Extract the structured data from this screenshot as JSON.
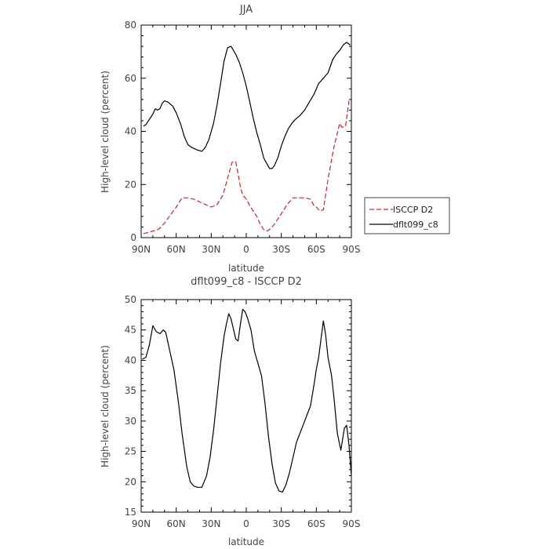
{
  "chart_data": [
    {
      "type": "line",
      "title": "JJA",
      "xlabel": "latitude",
      "ylabel": "High-level cloud (percent)",
      "xlim": [
        -90,
        90
      ],
      "ylim": [
        0,
        80
      ],
      "xticks": [
        -90,
        -60,
        -30,
        0,
        30,
        60,
        90
      ],
      "xtick_labels": [
        "90N",
        "60N",
        "30N",
        "0",
        "30S",
        "60S",
        "90S"
      ],
      "yticks": [
        0,
        20,
        40,
        60,
        80
      ],
      "ytick_labels": [
        "0",
        "20",
        "40",
        "60",
        "80"
      ],
      "legend_position": "right",
      "series": [
        {
          "name": "ISCCP D2",
          "color": "#e02020",
          "dash": "dashed",
          "x": [
            -88,
            -82,
            -75,
            -70,
            -65,
            -60,
            -55,
            -50,
            -45,
            -40,
            -35,
            -30,
            -25,
            -20,
            -15,
            -12,
            -9,
            -7,
            -5,
            -3,
            0,
            3,
            6,
            9,
            12,
            15,
            18,
            21,
            24,
            27,
            30,
            35,
            40,
            45,
            50,
            55,
            58,
            60,
            63,
            66,
            70,
            75,
            80,
            82,
            85,
            88
          ],
          "y": [
            1.5,
            2.2,
            3.2,
            5.5,
            8.5,
            11.5,
            15,
            15,
            14.5,
            13.5,
            12.5,
            11.5,
            12.5,
            16,
            24,
            28.5,
            28.5,
            24,
            19,
            16,
            14.5,
            12,
            10,
            8,
            5,
            3,
            2.5,
            3.5,
            5,
            7,
            9,
            12.5,
            15,
            15,
            15,
            14.5,
            12,
            11.5,
            10,
            10.5,
            22,
            34,
            43,
            41.5,
            42,
            51.5
          ]
        },
        {
          "name": "dflt099_c8",
          "color": "#000000",
          "dash": "solid",
          "x": [
            -88,
            -86,
            -83,
            -80,
            -78,
            -76,
            -74,
            -72,
            -70,
            -67,
            -63,
            -60,
            -56,
            -53,
            -50,
            -47,
            -42,
            -38,
            -35,
            -32,
            -28,
            -25,
            -22,
            -19,
            -16,
            -13,
            -11,
            -9,
            -6,
            -3,
            0,
            3,
            6,
            9,
            12,
            15,
            18,
            20,
            22,
            24,
            27,
            30,
            33,
            36,
            39,
            42,
            46,
            50,
            54,
            58,
            62,
            66,
            70,
            74,
            77,
            80,
            83,
            86,
            89
          ],
          "y": [
            42,
            42.5,
            44.5,
            46.5,
            48.5,
            48,
            48.5,
            50.5,
            51.5,
            51,
            49.5,
            47,
            42.5,
            38,
            35,
            34,
            33,
            32.5,
            34,
            37,
            43,
            50,
            58,
            66.5,
            71.5,
            72,
            70.5,
            69,
            66,
            62,
            57,
            51,
            45,
            39.5,
            35,
            30,
            27.5,
            26,
            26,
            27,
            30,
            34.5,
            38,
            41,
            43,
            44.5,
            46,
            48,
            51,
            54,
            58,
            60,
            62,
            67,
            69,
            70.5,
            72.5,
            73.5,
            72.5
          ]
        }
      ]
    },
    {
      "type": "line",
      "title": "dflt099_c8 - ISCCP D2",
      "xlabel": "latitude",
      "ylabel": "High-level cloud (percent)",
      "xlim": [
        -90,
        90
      ],
      "ylim": [
        15,
        50
      ],
      "xticks": [
        -90,
        -60,
        -30,
        0,
        30,
        60,
        90
      ],
      "xtick_labels": [
        "90N",
        "60N",
        "30N",
        "0",
        "30S",
        "60S",
        "90S"
      ],
      "yticks": [
        15,
        20,
        25,
        30,
        35,
        40,
        45,
        50
      ],
      "ytick_labels": [
        "15",
        "20",
        "25",
        "30",
        "35",
        "40",
        "45",
        "50"
      ],
      "series": [
        {
          "color": "#000000",
          "dash": "solid",
          "x": [
            -89,
            -86,
            -83,
            -80,
            -77,
            -74,
            -71,
            -69,
            -66,
            -62,
            -58,
            -55,
            -51,
            -48,
            -45,
            -42,
            -38,
            -34,
            -31,
            -28,
            -25,
            -22,
            -19,
            -17,
            -15,
            -13,
            -11,
            -9,
            -7,
            -5,
            -3,
            -1,
            1,
            4,
            7,
            10,
            13,
            16,
            19,
            22,
            25,
            28,
            31,
            34,
            37,
            40,
            43,
            46,
            49,
            52,
            55,
            58,
            60,
            62,
            64,
            66,
            68,
            70,
            73,
            75,
            78,
            81,
            84,
            86,
            88,
            90
          ],
          "y": [
            40.2,
            40.5,
            42.5,
            45.7,
            44.7,
            44.4,
            45,
            44.6,
            42,
            38.5,
            33,
            28,
            22.5,
            20,
            19.3,
            19.1,
            19.1,
            21,
            24,
            28.5,
            34,
            39.5,
            44,
            46,
            47.7,
            46.8,
            45.2,
            43.5,
            43.2,
            46,
            48.4,
            48,
            47,
            45,
            41.5,
            39.5,
            37.5,
            33,
            27.5,
            23,
            19.8,
            18.5,
            18.3,
            19.5,
            21.5,
            24,
            26.5,
            28,
            29.5,
            31,
            32.5,
            36,
            38.5,
            40.5,
            43.5,
            46.5,
            44.2,
            40.5,
            37.5,
            34,
            28,
            25.2,
            28.8,
            29.3,
            26,
            21
          ]
        }
      ]
    }
  ]
}
